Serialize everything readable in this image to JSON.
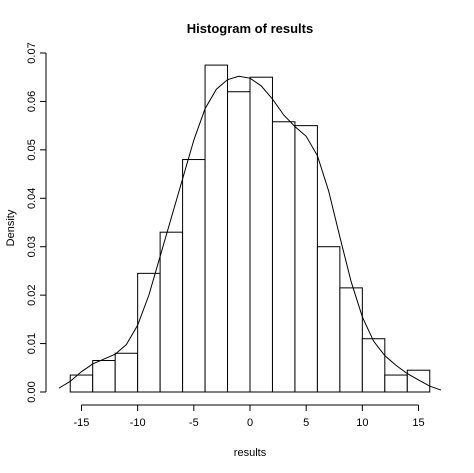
{
  "chart_data": {
    "type": "bar",
    "title": "Histogram of results",
    "xlabel": "results",
    "ylabel": "Density",
    "xlim": [
      -17,
      17
    ],
    "ylim": [
      0,
      0.07
    ],
    "bin_edges": [
      -16,
      -14,
      -12,
      -10,
      -8,
      -6,
      -4,
      -2,
      0,
      2,
      4,
      6,
      8,
      10,
      12,
      14,
      16
    ],
    "values": [
      0.0035,
      0.0065,
      0.008,
      0.0245,
      0.033,
      0.048,
      0.0675,
      0.062,
      0.065,
      0.0558,
      0.055,
      0.03,
      0.0215,
      0.011,
      0.0035,
      0.0045
    ],
    "x_ticks": [
      -15,
      -10,
      -5,
      0,
      5,
      10,
      15
    ],
    "x_tick_labels": [
      "-15",
      "-10",
      "-5",
      "0",
      "5",
      "10",
      "15"
    ],
    "y_ticks": [
      0.0,
      0.01,
      0.02,
      0.03,
      0.04,
      0.05,
      0.06,
      0.07
    ],
    "y_tick_labels": [
      "0.00",
      "0.01",
      "0.02",
      "0.03",
      "0.04",
      "0.05",
      "0.06",
      "0.07"
    ],
    "density_curve": {
      "x": [
        -17,
        -16,
        -15,
        -14,
        -13,
        -12,
        -11,
        -10,
        -9,
        -8,
        -7,
        -6,
        -5,
        -4,
        -3,
        -2,
        -1,
        0,
        1,
        2,
        3,
        4,
        5,
        6,
        7,
        8,
        9,
        10,
        11,
        12,
        13,
        14,
        15,
        16,
        17
      ],
      "y": [
        0.0008,
        0.0022,
        0.0042,
        0.0058,
        0.0068,
        0.0078,
        0.0098,
        0.0138,
        0.02,
        0.028,
        0.036,
        0.044,
        0.052,
        0.0585,
        0.0625,
        0.0645,
        0.0652,
        0.0648,
        0.0632,
        0.0605,
        0.0572,
        0.0548,
        0.0528,
        0.0488,
        0.0415,
        0.032,
        0.0228,
        0.0155,
        0.0105,
        0.0075,
        0.0055,
        0.0038,
        0.0025,
        0.0012,
        0.0004
      ]
    },
    "grid": false
  }
}
